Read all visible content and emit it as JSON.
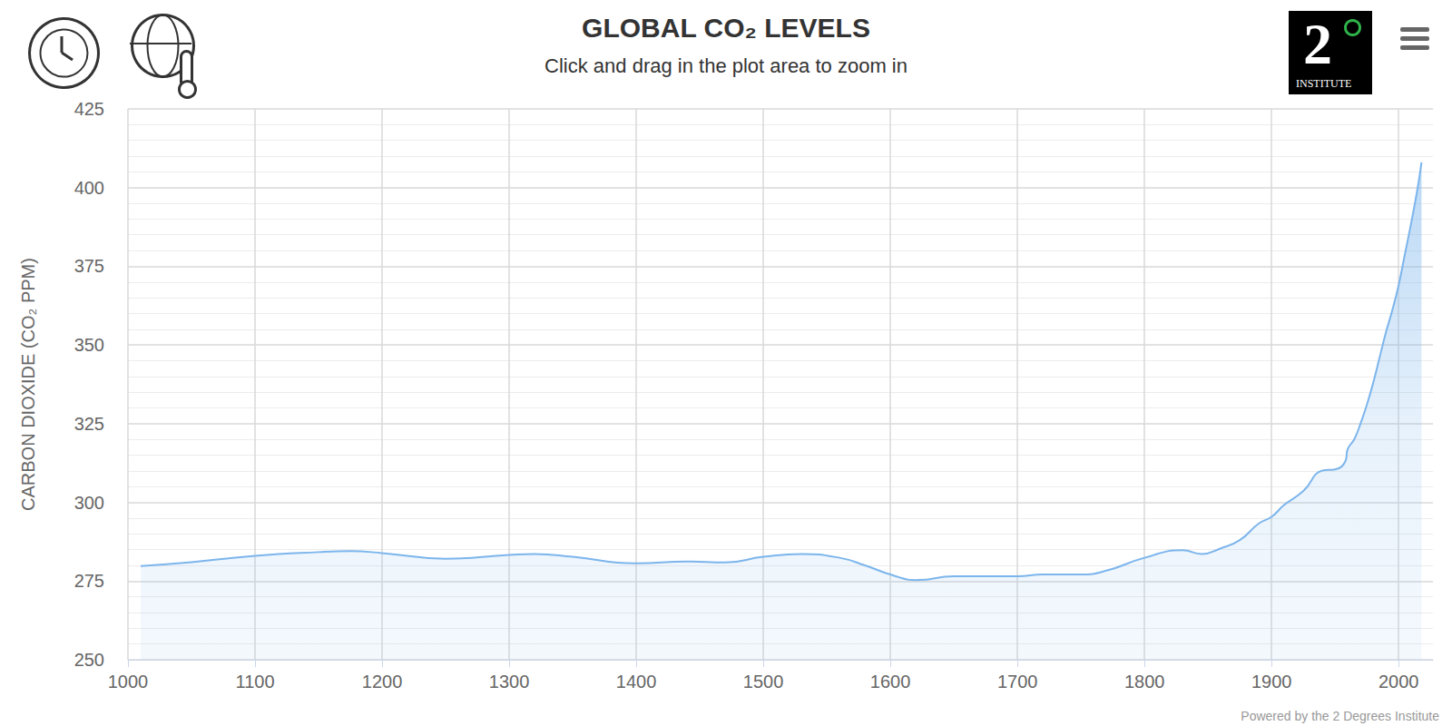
{
  "chart_data": {
    "type": "area",
    "title": "GLOBAL CO₂ LEVELS",
    "subtitle": "Click and drag in the plot area to zoom in",
    "y_label": "CARBON DIOXIDE (CO₂ PPM)",
    "credit": "Powered by the 2 Degrees Institute",
    "logo": "2",
    "logo_caption": "INSTITUTE",
    "x": [
      1010,
      1050,
      1100,
      1150,
      1175,
      1200,
      1250,
      1300,
      1320,
      1350,
      1400,
      1440,
      1470,
      1500,
      1530,
      1560,
      1580,
      1600,
      1620,
      1650,
      1700,
      1720,
      1750,
      1770,
      1800,
      1830,
      1845,
      1860,
      1875,
      1890,
      1900,
      1910,
      1925,
      1940,
      1950,
      1958,
      1960,
      1965,
      1970,
      1975,
      1980,
      1985,
      1990,
      1995,
      2000,
      2005,
      2010,
      2015,
      2018
    ],
    "values": [
      279.8,
      281,
      283,
      284.2,
      284.5,
      283.9,
      282.1,
      283.3,
      283.6,
      282.7,
      280.6,
      281.2,
      280.9,
      282.7,
      283.6,
      282.4,
      280,
      277.1,
      275.3,
      276.5,
      276.5,
      277.1,
      277.1,
      278.3,
      282.4,
      284.8,
      283.6,
      285.4,
      288,
      293.3,
      295.4,
      299.2,
      303.6,
      310.1,
      310.5,
      313,
      317,
      320,
      325,
      331,
      338,
      346,
      354,
      361,
      369,
      379,
      389,
      400,
      408
    ],
    "color": "#7cb5ec",
    "xlim": [
      1000,
      2027
    ],
    "xticks": [
      1000,
      1100,
      1200,
      1300,
      1400,
      1500,
      1600,
      1700,
      1800,
      1900,
      2000
    ],
    "ylim": [
      250,
      425
    ],
    "yticks": [
      250,
      275,
      300,
      325,
      350,
      375,
      400,
      425
    ],
    "grid": true
  }
}
